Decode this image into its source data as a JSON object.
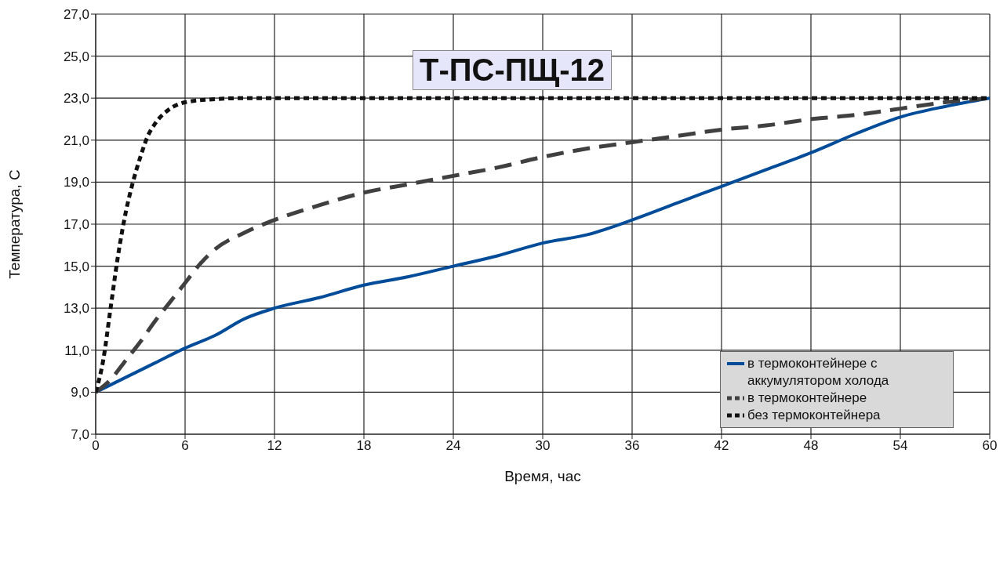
{
  "chart_data": {
    "type": "line",
    "title": "Т-ПС-ПЩ-12",
    "xlabel": "Время, час",
    "ylabel": "Температура, С",
    "xlim": [
      0,
      60
    ],
    "xticks": [
      0,
      6,
      12,
      18,
      24,
      30,
      36,
      42,
      48,
      54,
      60
    ],
    "ylim": [
      7,
      27
    ],
    "yticks": [
      {
        "value": 7,
        "label": "7,0"
      },
      {
        "value": 9,
        "label": "9,0"
      },
      {
        "value": 11,
        "label": "11,0"
      },
      {
        "value": 13,
        "label": "13,0"
      },
      {
        "value": 15,
        "label": "15,0"
      },
      {
        "value": 17,
        "label": "17,0"
      },
      {
        "value": 19,
        "label": "19,0"
      },
      {
        "value": 21,
        "label": "21,0"
      },
      {
        "value": 23,
        "label": "23,0"
      },
      {
        "value": 25,
        "label": "25,0"
      },
      {
        "value": 27,
        "label": "27,0"
      }
    ],
    "grid": true,
    "legend": "bottom right",
    "marker": "none",
    "series": [
      {
        "name": "в термоконтейнере с аккумулятором холода",
        "color": "#004c99",
        "line_style": "solid",
        "x": [
          0,
          2,
          4,
          6,
          8,
          10,
          12,
          15,
          18,
          21,
          24,
          27,
          30,
          33,
          36,
          39,
          42,
          45,
          48,
          51,
          54,
          57,
          60
        ],
        "values": [
          9,
          9.7,
          10.4,
          11.1,
          11.7,
          12.5,
          13,
          13.5,
          14.1,
          14.5,
          15,
          15.5,
          16.1,
          16.5,
          17.2,
          18,
          18.8,
          19.6,
          20.4,
          21.3,
          22.1,
          22.6,
          23
        ]
      },
      {
        "name": "в термоконтейнере",
        "color": "#404040",
        "line_style": "dashed",
        "x": [
          0,
          1,
          2,
          3,
          4,
          5,
          6,
          7,
          8,
          10,
          12,
          15,
          18,
          21,
          24,
          27,
          30,
          33,
          36,
          39,
          42,
          45,
          48,
          51,
          54,
          57,
          60
        ],
        "values": [
          9,
          9.6,
          10.5,
          11.4,
          12.4,
          13.3,
          14.2,
          15.1,
          15.8,
          16.6,
          17.2,
          17.9,
          18.5,
          18.9,
          19.3,
          19.7,
          20.2,
          20.6,
          20.9,
          21.2,
          21.5,
          21.7,
          22,
          22.2,
          22.5,
          22.8,
          23
        ]
      },
      {
        "name": "без термоконтейнера",
        "color": "#111111",
        "line_style": "dotted",
        "x": [
          0,
          0.5,
          1,
          1.5,
          2,
          2.5,
          3,
          3.5,
          4,
          5,
          6,
          8,
          10,
          15,
          20,
          30,
          40,
          50,
          60
        ],
        "values": [
          9,
          10.5,
          13,
          15.5,
          17.5,
          19,
          20.2,
          21.2,
          21.8,
          22.5,
          22.8,
          22.95,
          23,
          23,
          23,
          23,
          23,
          23,
          23
        ]
      }
    ]
  }
}
